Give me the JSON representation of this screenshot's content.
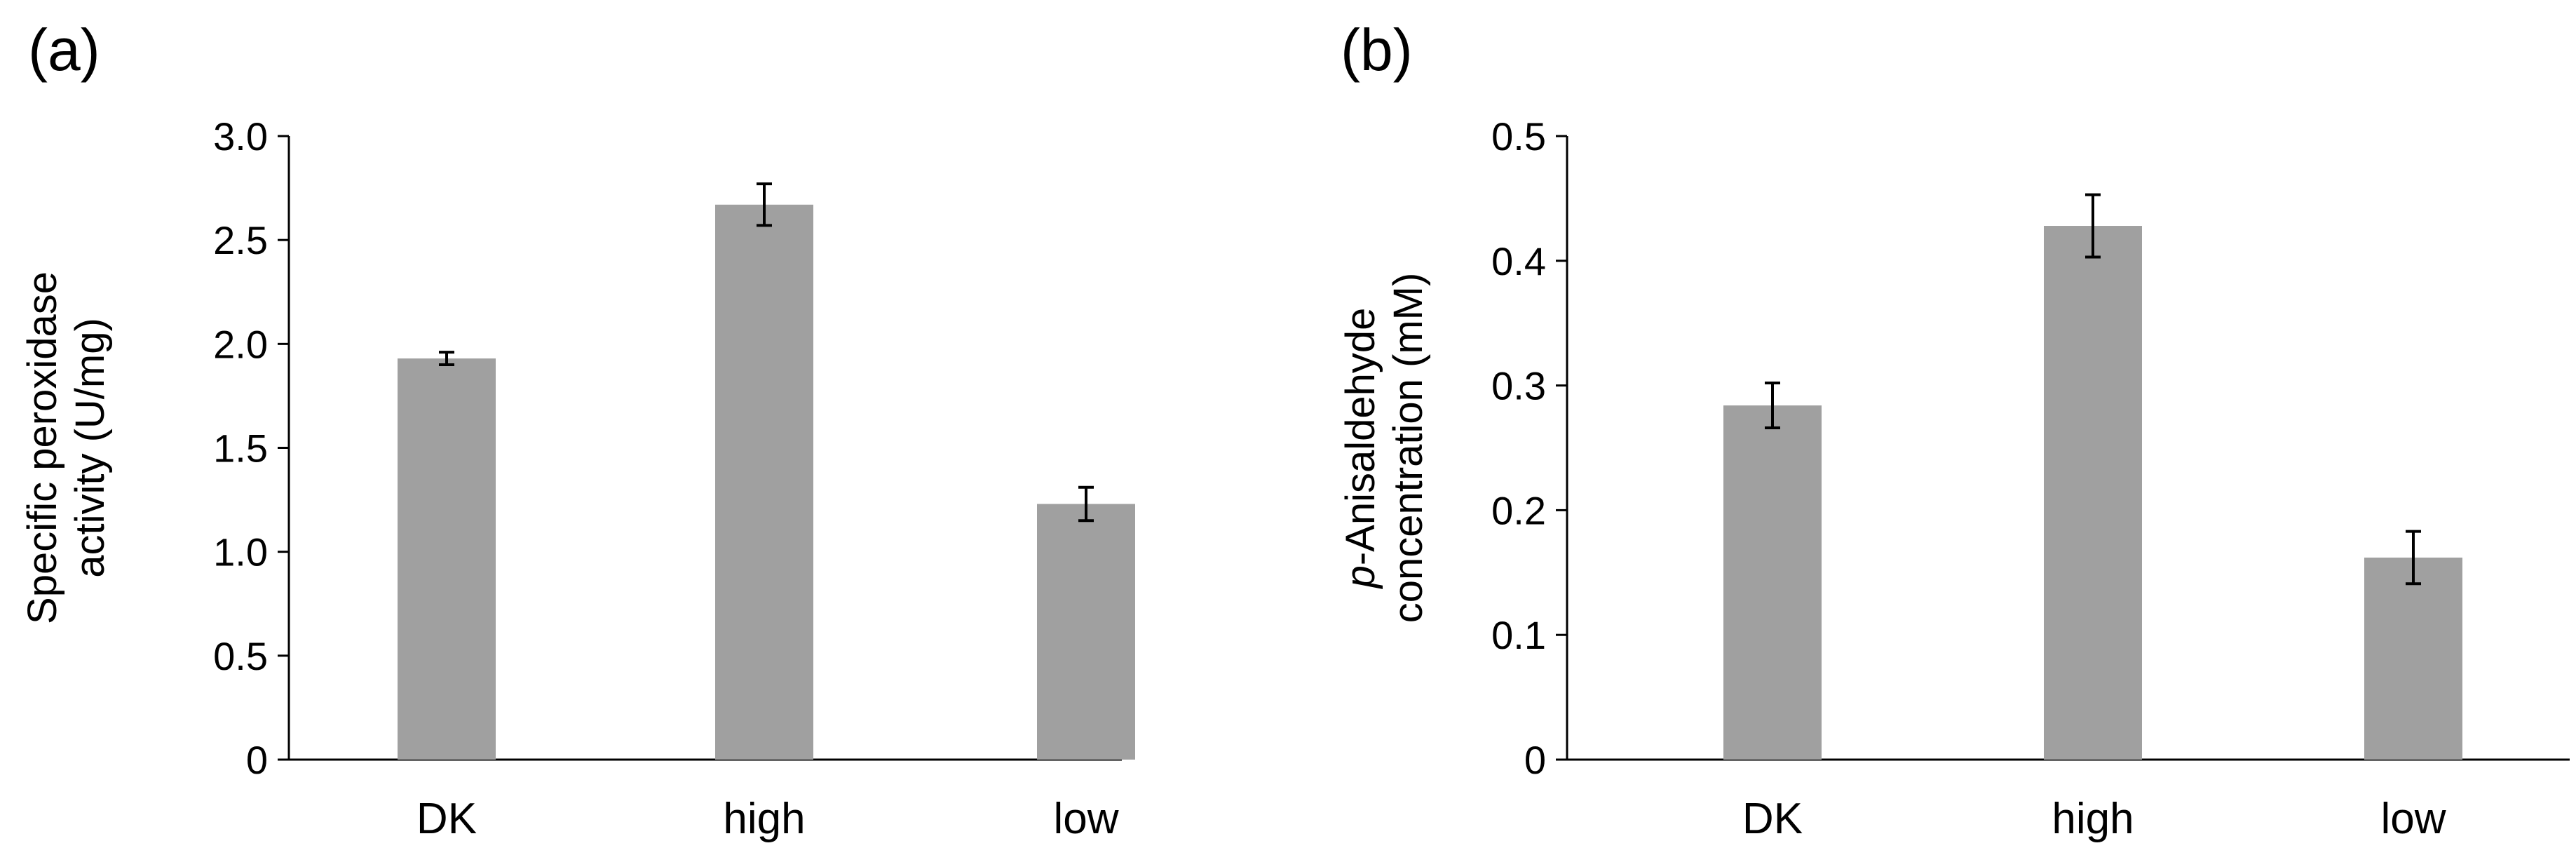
{
  "chart_data": [
    {
      "type": "bar",
      "panel_label": "(a)",
      "categories": [
        "DK",
        "high",
        "low"
      ],
      "values": [
        1.93,
        2.67,
        1.23
      ],
      "errors": [
        0.03,
        0.1,
        0.08
      ],
      "ylabel_lines": [
        "Specific peroxidase",
        "activity (U/mg)"
      ],
      "ylim": [
        0,
        3.0
      ],
      "yticks": [
        0,
        0.5,
        1.0,
        1.5,
        2.0,
        2.5,
        3.0
      ],
      "ytick_labels": [
        "0",
        "0.5",
        "1.0",
        "1.5",
        "2.0",
        "2.5",
        "3.0"
      ],
      "bar_color": "#a0a0a0",
      "grid": false
    },
    {
      "type": "bar",
      "panel_label": "(b)",
      "categories": [
        "DK",
        "high",
        "low"
      ],
      "values": [
        0.284,
        0.428,
        0.162
      ],
      "errors": [
        0.018,
        0.025,
        0.021
      ],
      "ylabel_lines": [
        "p-Anisaldehyde",
        "concentration (mM)"
      ],
      "ylabel_italic_prefix": "p",
      "ylim": [
        0,
        0.5
      ],
      "yticks": [
        0,
        0.1,
        0.2,
        0.3,
        0.4,
        0.5
      ],
      "ytick_labels": [
        "0",
        "0.1",
        "0.2",
        "0.3",
        "0.4",
        "0.5"
      ],
      "bar_color": "#a0a0a0",
      "grid": false
    }
  ]
}
